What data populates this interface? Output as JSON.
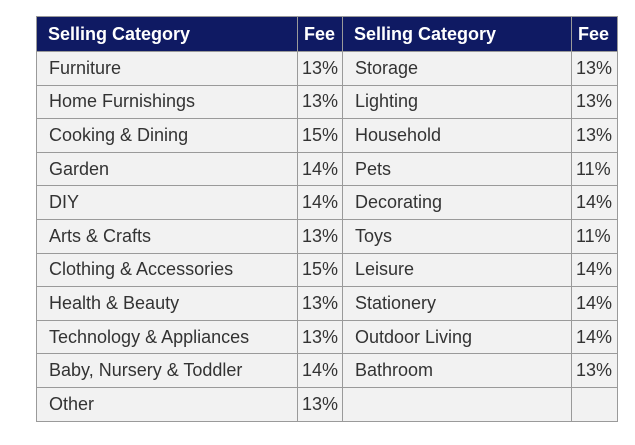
{
  "headers": [
    "Selling Category",
    "Fee",
    "Selling Category",
    "Fee"
  ],
  "rows": [
    [
      "Furniture",
      "13%",
      "Storage",
      "13%"
    ],
    [
      "Home Furnishings",
      "13%",
      "Lighting",
      "13%"
    ],
    [
      "Cooking & Dining",
      "15%",
      "Household",
      "13%"
    ],
    [
      "Garden",
      "14%",
      "Pets",
      "11%"
    ],
    [
      "DIY",
      "14%",
      "Decorating",
      "14%"
    ],
    [
      "Arts & Crafts",
      "13%",
      "Toys",
      "11%"
    ],
    [
      "Clothing & Accessories",
      "15%",
      "Leisure",
      "14%"
    ],
    [
      "Health & Beauty",
      "13%",
      "Stationery",
      "14%"
    ],
    [
      "Technology & Appliances",
      "13%",
      "Outdoor Living",
      "14%"
    ],
    [
      "Baby, Nursery & Toddler",
      "14%",
      "Bathroom",
      "13%"
    ],
    [
      "Other",
      "13%",
      "",
      ""
    ]
  ],
  "colors": {
    "header_bg": "#0f1a63",
    "header_text": "#ffffff",
    "cell_bg": "#f2f2f2",
    "border": "#9a9a9a"
  }
}
